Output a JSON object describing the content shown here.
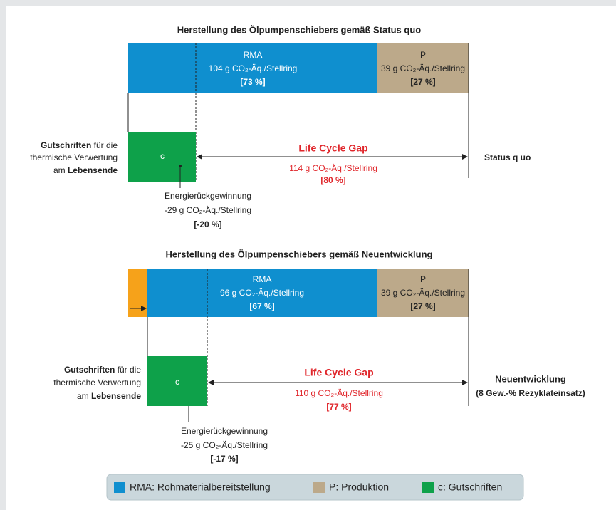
{
  "sections": [
    {
      "title": "Herstellung des Ölpumpenschiebers gemäß Status quo",
      "segments": [
        {
          "label": "RMA",
          "value": "104 g CO₂-Äq./Stellring",
          "share": "[73 %]"
        },
        {
          "label": "P",
          "value": "39 g CO₂-Äq./Stellring",
          "share": "[27 %]"
        }
      ],
      "credit": {
        "label": "c",
        "caption": [
          "Energierückgewinnung",
          "-29 g CO₂-Äq./Stellring",
          "[-20 %]"
        ]
      },
      "gap": {
        "title": "Life Cycle Gap",
        "value": "114 g CO₂-Äq./Stellring",
        "share": "[80 %]"
      },
      "side_note": {
        "bold1": "Gutschriften",
        "rest1": " für die",
        "line2": "thermische Verwertung",
        "pre3": "am ",
        "bold3": "Lebensende"
      },
      "scenario": [
        "Status q uo"
      ]
    },
    {
      "title": "Herstellung des Ölpumpenschiebers gemäß Neuentwicklung",
      "segments": [
        {
          "label": "RMA",
          "value": "96 g CO₂-Äq./Stellring",
          "share": "[67 %]"
        },
        {
          "label": "P",
          "value": "39 g CO₂-Äq./Stellring",
          "share": "[27 %]"
        }
      ],
      "credit": {
        "label": "c",
        "caption": [
          "Energierückgewinnung",
          "-25 g CO₂-Äq./Stellring",
          "[-17 %]"
        ]
      },
      "gap": {
        "title": "Life Cycle Gap",
        "value": "110 g CO₂-Äq./Stellring",
        "share": "[77 %]"
      },
      "side_note": {
        "bold1": "Gutschriften",
        "rest1": " für die",
        "line2": "thermische Verwertung",
        "pre3": "am ",
        "bold3": "Lebensende"
      },
      "scenario": [
        "Neuentwicklung",
        "(8 Gew.-% Rezyklateinsatz)"
      ]
    }
  ],
  "legend": [
    "RMA: Rohmaterialbereitstellung",
    "P: Produktion",
    "c: Gutschriften"
  ]
}
